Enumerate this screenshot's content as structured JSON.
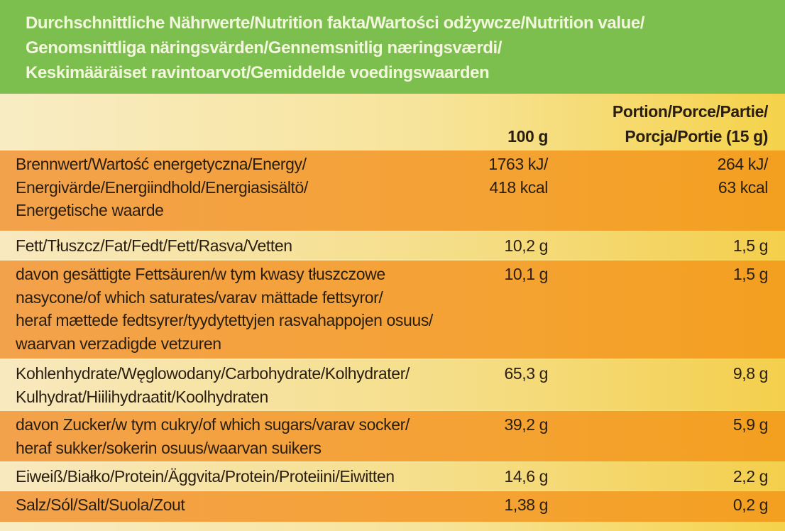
{
  "header": {
    "title": [
      "Durchschnittliche Nährwerte/Nutrition fakta/Wartości odżywcze/Nutrition value/",
      "Genomsnittliga näringsvärden/Gennemsnitlig næringsværdi/",
      "Keskimääräiset ravintoarvot/Gemiddelde voedingswaarden"
    ]
  },
  "table": {
    "columns": [
      [
        "100 g"
      ],
      [
        "Portion/Porce/Partie/",
        "Porcja/Portie (15 g)"
      ]
    ],
    "rows": [
      {
        "label": [
          "Brennwert/Wartość energetyczna/Energy/",
          "Energivärde/Energiindhold/Energiasisältö/",
          "Energetische waarde"
        ],
        "per100": [
          "1763 kJ/",
          "418 kcal"
        ],
        "portion": [
          "264 kJ/",
          "63 kcal"
        ]
      },
      {
        "label": [
          "Fett/Tłuszcz/Fat/Fedt/Fett/Rasva/Vetten"
        ],
        "per100": [
          "10,2 g"
        ],
        "portion": [
          "1,5 g"
        ]
      },
      {
        "label": [
          "davon gesättigte Fettsäuren/w tym kwasy tłuszczowe",
          "nasycone/of which saturates/varav mättade fettsyror/",
          "heraf mættede fedtsyrer/tyydytettyjen rasvahappojen osuus/",
          "waarvan verzadigde vetzuren"
        ],
        "per100": [
          "10,1 g"
        ],
        "portion": [
          "1,5 g"
        ]
      },
      {
        "label": [
          "Kohlenhydrate/Węglowodany/Carbohydrate/Kolhydrater/",
          "Kulhydrat/Hiilihydraatit/Koolhydraten"
        ],
        "per100": [
          "65,3 g"
        ],
        "portion": [
          "9,8 g"
        ]
      },
      {
        "label": [
          "davon Zucker/w tym cukry/of which sugars/varav socker/",
          "heraf sukker/sokerin osuus/waarvan suikers"
        ],
        "per100": [
          "39,2 g"
        ],
        "portion": [
          "5,9 g"
        ]
      },
      {
        "label": [
          "Eiweiß/Białko/Protein/Äggvita/Protein/Proteiini/Eiwitten"
        ],
        "per100": [
          "14,6 g"
        ],
        "portion": [
          "2,2 g"
        ]
      },
      {
        "label": [
          "Salz/Sól/Salt/Suola/Zout"
        ],
        "per100": [
          "1,38 g"
        ],
        "portion": [
          "0,2 g"
        ]
      }
    ]
  }
}
